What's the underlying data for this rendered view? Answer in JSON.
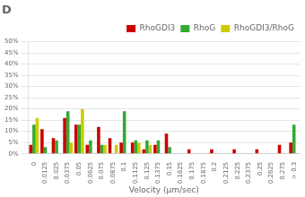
{
  "chart_data": {
    "type": "bar",
    "title": "D",
    "xlabel": "Velocity (µm/sec)",
    "categories": [
      "0",
      "0.0125",
      "0.025",
      "0.0375",
      "0.05",
      "0.0625",
      "0.075",
      "0.0875",
      "0.1",
      "0.1125",
      "0.125",
      "0.1375",
      "0.15",
      "0.1625",
      "0.175",
      "0.1875",
      "0.2",
      "0.2125",
      "0.225",
      "0.2375",
      "0.25",
      "0.2625",
      "0.275",
      "> 0.3"
    ],
    "series": [
      {
        "name": "RhoGDI3",
        "color": "#cc0000",
        "values": [
          4,
          11,
          7,
          16,
          13,
          4,
          12,
          7,
          5,
          5,
          2,
          4,
          9,
          0,
          2,
          0,
          2,
          0,
          2,
          0,
          2,
          0,
          4,
          5
        ]
      },
      {
        "name": "RhoG",
        "color": "#33aa33",
        "values": [
          13,
          3,
          6,
          19,
          13,
          6,
          4,
          0,
          19,
          6,
          6,
          6,
          3,
          0,
          0,
          0,
          0,
          0,
          0,
          0,
          0,
          0,
          0,
          13
        ]
      },
      {
        "name": "RhoGDI3/RhoG",
        "color": "#cccc00",
        "values": [
          16,
          0,
          0,
          5,
          20,
          0,
          4,
          4,
          0,
          5,
          4,
          0,
          0,
          0,
          0,
          0,
          0,
          0,
          0,
          0,
          0,
          0,
          0,
          0
        ]
      }
    ],
    "ylim": [
      0,
      50
    ],
    "yticks": [
      {
        "value": 0,
        "label": "0%"
      },
      {
        "value": 5,
        "label": "5%"
      },
      {
        "value": 10,
        "label": "10%"
      },
      {
        "value": 15,
        "label": "15%"
      },
      {
        "value": 20,
        "label": "20%"
      },
      {
        "value": 25,
        "label": "25%"
      },
      {
        "value": 30,
        "label": "30%"
      },
      {
        "value": 35,
        "label": "35%"
      },
      {
        "value": 40,
        "label": "40%"
      },
      {
        "value": 45,
        "label": "45%"
      },
      {
        "value": 50,
        "label": "50%"
      }
    ],
    "grid": true,
    "legend": "upper right"
  }
}
